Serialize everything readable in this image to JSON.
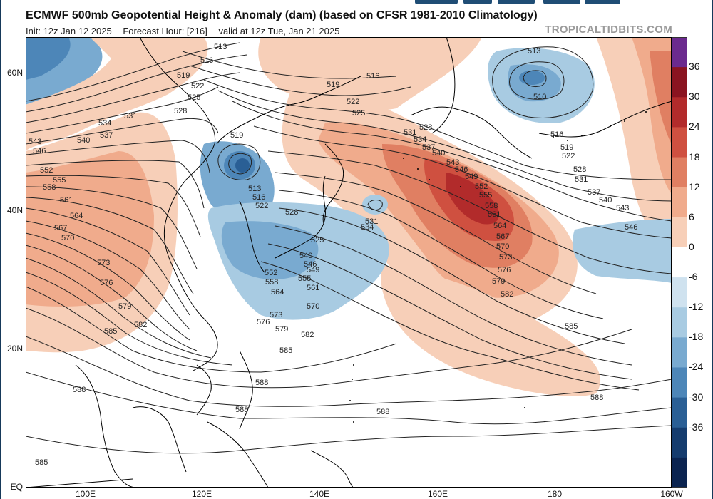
{
  "header": {
    "title": "ECMWF 500mb Geopotential Height & Anomaly (dam) (based on CFSR 1981-2010 Climatology)",
    "init": "Init: 12z Jan 12 2025",
    "forecast_hour": "Forecast Hour: [216]",
    "valid": "valid at 12z Tue, Jan 21 2025",
    "brand": "TROPICALTIDBITS.COM"
  },
  "axes": {
    "lat_labels": [
      "60N",
      "40N",
      "20N",
      "EQ"
    ],
    "lon_labels": [
      "100E",
      "120E",
      "140E",
      "160E",
      "180",
      "160W"
    ]
  },
  "colorbar": {
    "labels": [
      "36",
      "30",
      "24",
      "18",
      "12",
      "6",
      "0",
      "-6",
      "-12",
      "-18",
      "-24",
      "-30",
      "-36"
    ],
    "colors_top_to_bottom": [
      "#6b2a8e",
      "#8a1420",
      "#b22b2b",
      "#cf5040",
      "#e07f62",
      "#f0ab8c",
      "#f7cfb8",
      "#ffffff",
      "#cfe2ef",
      "#a8cbe2",
      "#79aad0",
      "#4d86b8",
      "#2a5f95",
      "#153c6e",
      "#0b2450"
    ]
  },
  "contour_labels": [
    "513",
    "516",
    "519",
    "522",
    "525",
    "528",
    "531",
    "534",
    "537",
    "540",
    "543",
    "546",
    "549",
    "552",
    "555",
    "558",
    "561",
    "564",
    "567",
    "570",
    "573",
    "576",
    "579",
    "582",
    "585",
    "588",
    "510"
  ]
}
